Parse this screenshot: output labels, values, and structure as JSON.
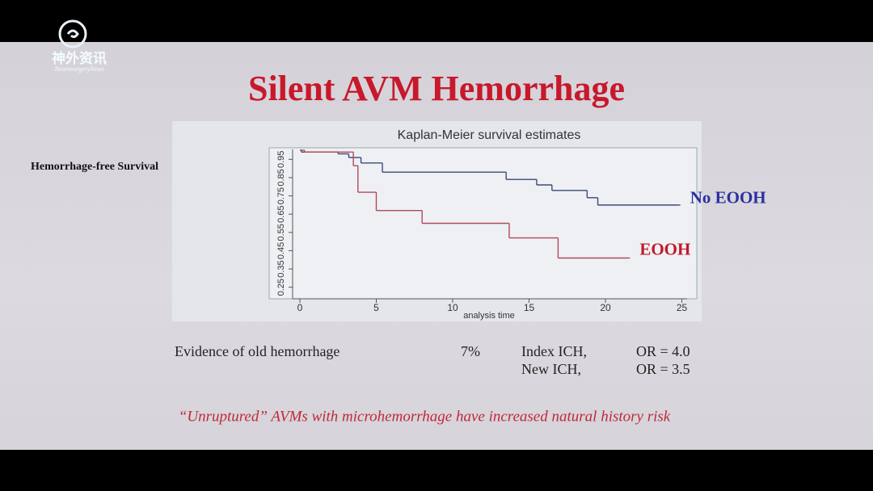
{
  "watermark": {
    "name": "神外资讯",
    "subtitle": "NeurosurgeryNews"
  },
  "slide_title": "Silent AVM Hemorrhage",
  "chart_data": {
    "type": "step",
    "title": "Kaplan-Meier survival estimates",
    "xlabel": "analysis time",
    "ylabel": "Hemorrhage-free Survival",
    "xlim": [
      -0.4,
      25.5
    ],
    "xticks": [
      0,
      5,
      10,
      15,
      20,
      25
    ],
    "ylim": [
      0.2,
      1.0
    ],
    "yticks": [
      0.25,
      0.35,
      0.45,
      0.55,
      0.65,
      0.75,
      0.85,
      0.95
    ],
    "series": [
      {
        "name": "No EOOH",
        "color": "#3c4a78",
        "label_color": "#2a2fa0",
        "x": [
          0,
          0.1,
          2.5,
          3.2,
          4.0,
          5.4,
          13.5,
          15.5,
          16.5,
          18.8,
          19.5,
          24.8
        ],
        "values": [
          1.0,
          0.99,
          0.98,
          0.96,
          0.93,
          0.88,
          0.84,
          0.81,
          0.78,
          0.74,
          0.7,
          0.7
        ]
      },
      {
        "name": "EOOH",
        "color": "#b04a5a",
        "label_color": "#c01a2a",
        "x": [
          0,
          0.3,
          3.5,
          3.8,
          5.0,
          8.0,
          13.7,
          16.9,
          21.5
        ],
        "values": [
          1.0,
          0.99,
          0.915,
          0.77,
          0.67,
          0.6,
          0.52,
          0.41,
          0.41
        ]
      }
    ]
  },
  "evidence": {
    "label": "Evidence of old hemorrhage",
    "percent": "7%",
    "rows": [
      [
        "Index ICH,",
        "OR = 4.0"
      ],
      [
        "New ICH,",
        "OR = 3.5"
      ]
    ]
  },
  "footnote": "“Unruptured” AVMs with microhemorrhage have increased natural history risk"
}
